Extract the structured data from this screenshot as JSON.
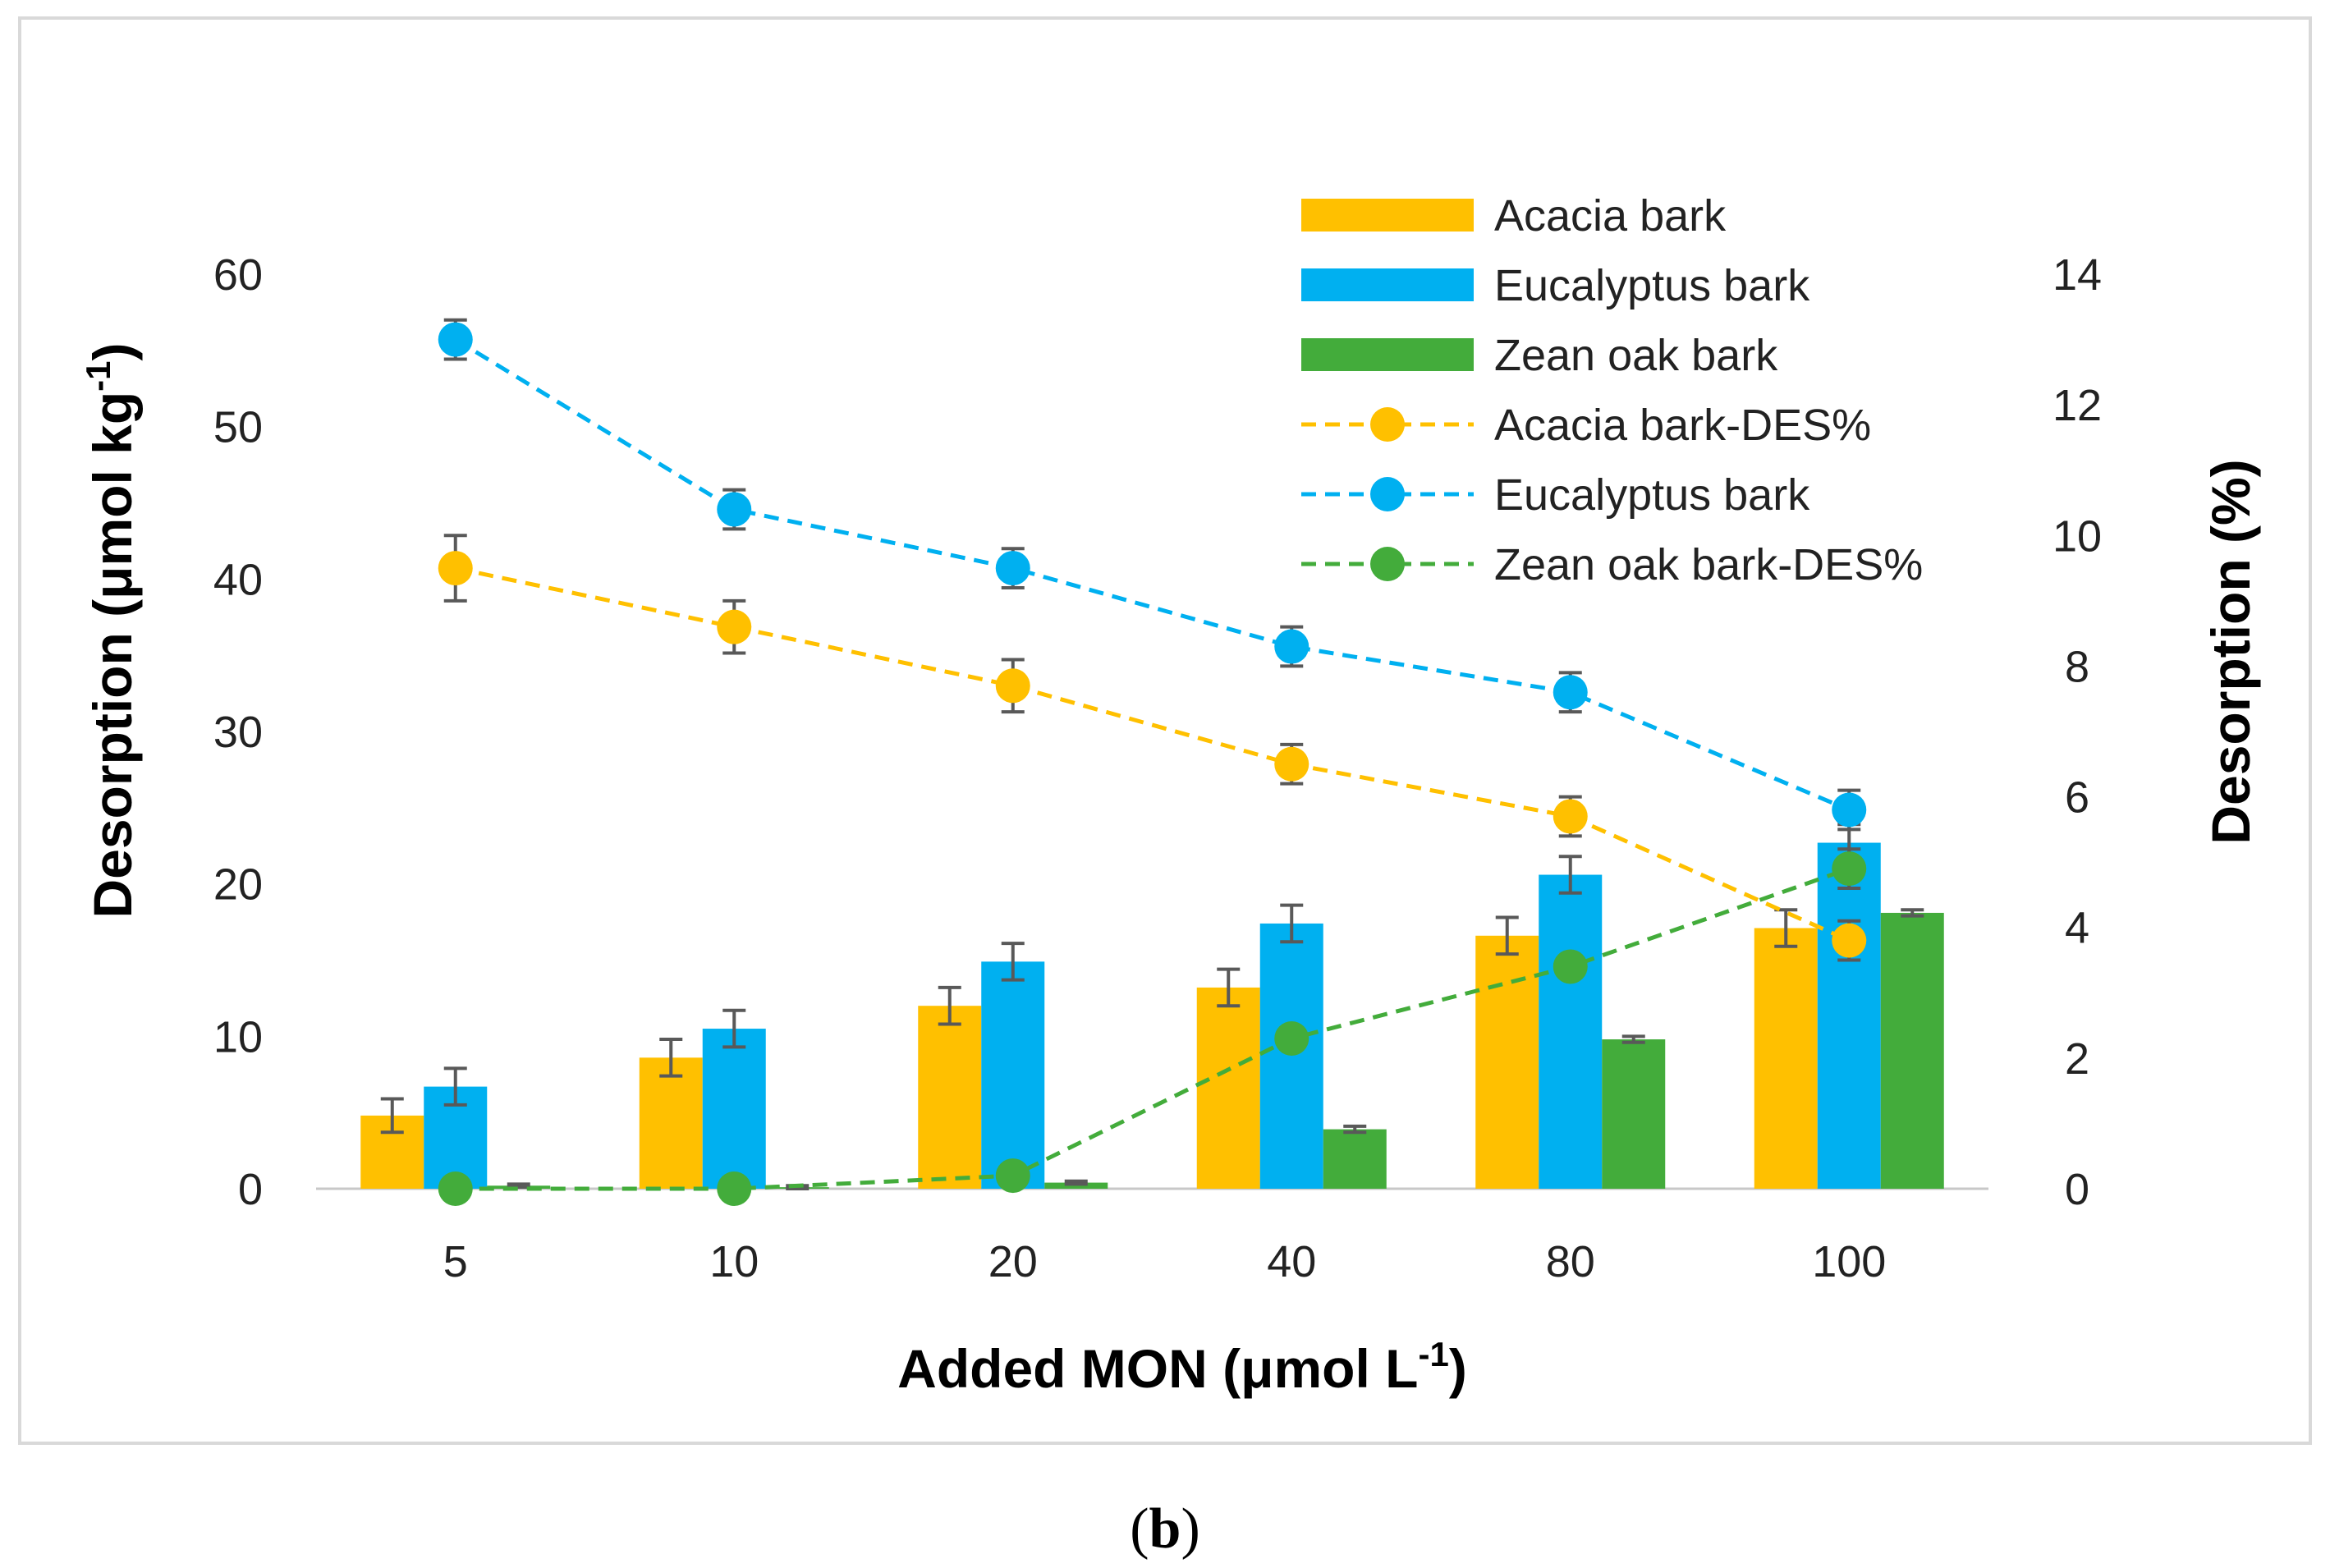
{
  "chart_data": {
    "type": "bar",
    "categories": [
      "5",
      "10",
      "20",
      "40",
      "80",
      "100"
    ],
    "xlabel": "Added MON (μmol L",
    "xlabel_sup": "-1",
    "xlabel_end": ")",
    "ylabel": "Desorption (μmol kg",
    "ylabel_sup": "-1",
    "ylabel_end": ")",
    "y2label": "Desorption (%)",
    "ylim": [
      0,
      60
    ],
    "y_ticks": [
      "0",
      "10",
      "20",
      "30",
      "40",
      "50",
      "60"
    ],
    "y2lim": [
      0,
      14
    ],
    "y2_ticks": [
      "0",
      "2",
      "4",
      "6",
      "8",
      "10",
      "12",
      "14"
    ],
    "caption_open": "(",
    "caption_letter": "b",
    "caption_close": ")",
    "bar_series": [
      {
        "name": "Acacia bark",
        "color": "#FFC000",
        "values": [
          4.8,
          8.6,
          12.0,
          13.2,
          16.6,
          17.1
        ],
        "errors": [
          1.1,
          1.2,
          1.2,
          1.2,
          1.2,
          1.2
        ]
      },
      {
        "name": "Eucalyptus bark",
        "color": "#00B0F0",
        "values": [
          6.7,
          10.5,
          14.9,
          17.4,
          20.6,
          22.7
        ],
        "errors": [
          1.2,
          1.2,
          1.2,
          1.2,
          1.2,
          1.2
        ]
      },
      {
        "name": "Zean oak bark",
        "color": "#43AC3B",
        "values": [
          0.2,
          0.1,
          0.4,
          3.9,
          9.8,
          18.1
        ],
        "errors": [
          0.1,
          0.1,
          0.1,
          0.2,
          0.2,
          0.2
        ]
      }
    ],
    "line_series": [
      {
        "name": "Acacia bark-DES%",
        "color": "#FFC000",
        "values": [
          9.5,
          8.6,
          7.7,
          6.5,
          5.7,
          3.8
        ],
        "errors": [
          0.5,
          0.4,
          0.4,
          0.3,
          0.3,
          0.3
        ]
      },
      {
        "name": "Eucalyptus bark",
        "color": "#00B0F0",
        "values": [
          13.0,
          10.4,
          9.5,
          8.3,
          7.6,
          5.8
        ],
        "errors": [
          0.3,
          0.3,
          0.3,
          0.3,
          0.3,
          0.3
        ]
      },
      {
        "name": "Zean oak bark-DES%",
        "color": "#43AC3B",
        "values": [
          0.0,
          0.0,
          0.2,
          2.3,
          3.4,
          4.9
        ],
        "errors": [
          0,
          0,
          0,
          0,
          0,
          0.3
        ]
      }
    ]
  }
}
